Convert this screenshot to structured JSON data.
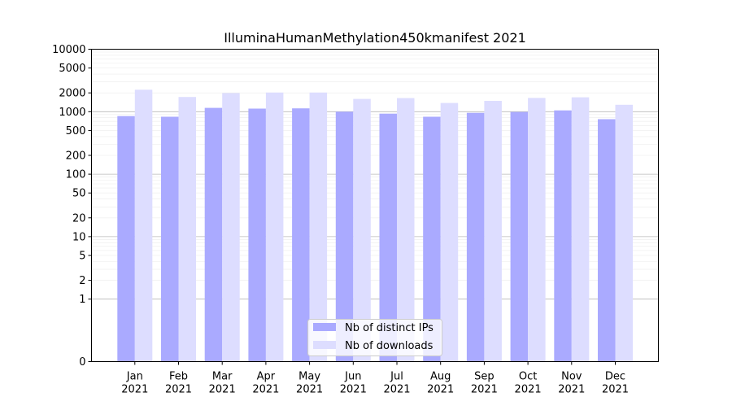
{
  "chart_data": {
    "type": "bar",
    "title": "IlluminaHumanMethylation450kmanifest 2021",
    "xlabel": "",
    "ylabel": "",
    "yscale": "symlog",
    "ylim": [
      0,
      10000
    ],
    "yticks": [
      0,
      1,
      2,
      5,
      10,
      20,
      50,
      100,
      200,
      500,
      1000,
      2000,
      5000,
      10000
    ],
    "grid": true,
    "legend_position": "bottom-center",
    "categories": [
      [
        "Jan",
        "2021"
      ],
      [
        "Feb",
        "2021"
      ],
      [
        "Mar",
        "2021"
      ],
      [
        "Apr",
        "2021"
      ],
      [
        "May",
        "2021"
      ],
      [
        "Jun",
        "2021"
      ],
      [
        "Jul",
        "2021"
      ],
      [
        "Aug",
        "2021"
      ],
      [
        "Sep",
        "2021"
      ],
      [
        "Oct",
        "2021"
      ],
      [
        "Nov",
        "2021"
      ],
      [
        "Dec",
        "2021"
      ]
    ],
    "series": [
      {
        "name": "Nb of distinct IPs",
        "color": "#aaaaff",
        "values": [
          850,
          830,
          1150,
          1120,
          1130,
          1000,
          930,
          830,
          960,
          990,
          1050,
          760
        ]
      },
      {
        "name": "Nb of downloads",
        "color": "#ddddff",
        "values": [
          2250,
          1720,
          1980,
          2020,
          2020,
          1600,
          1650,
          1380,
          1490,
          1660,
          1700,
          1290
        ]
      }
    ]
  }
}
